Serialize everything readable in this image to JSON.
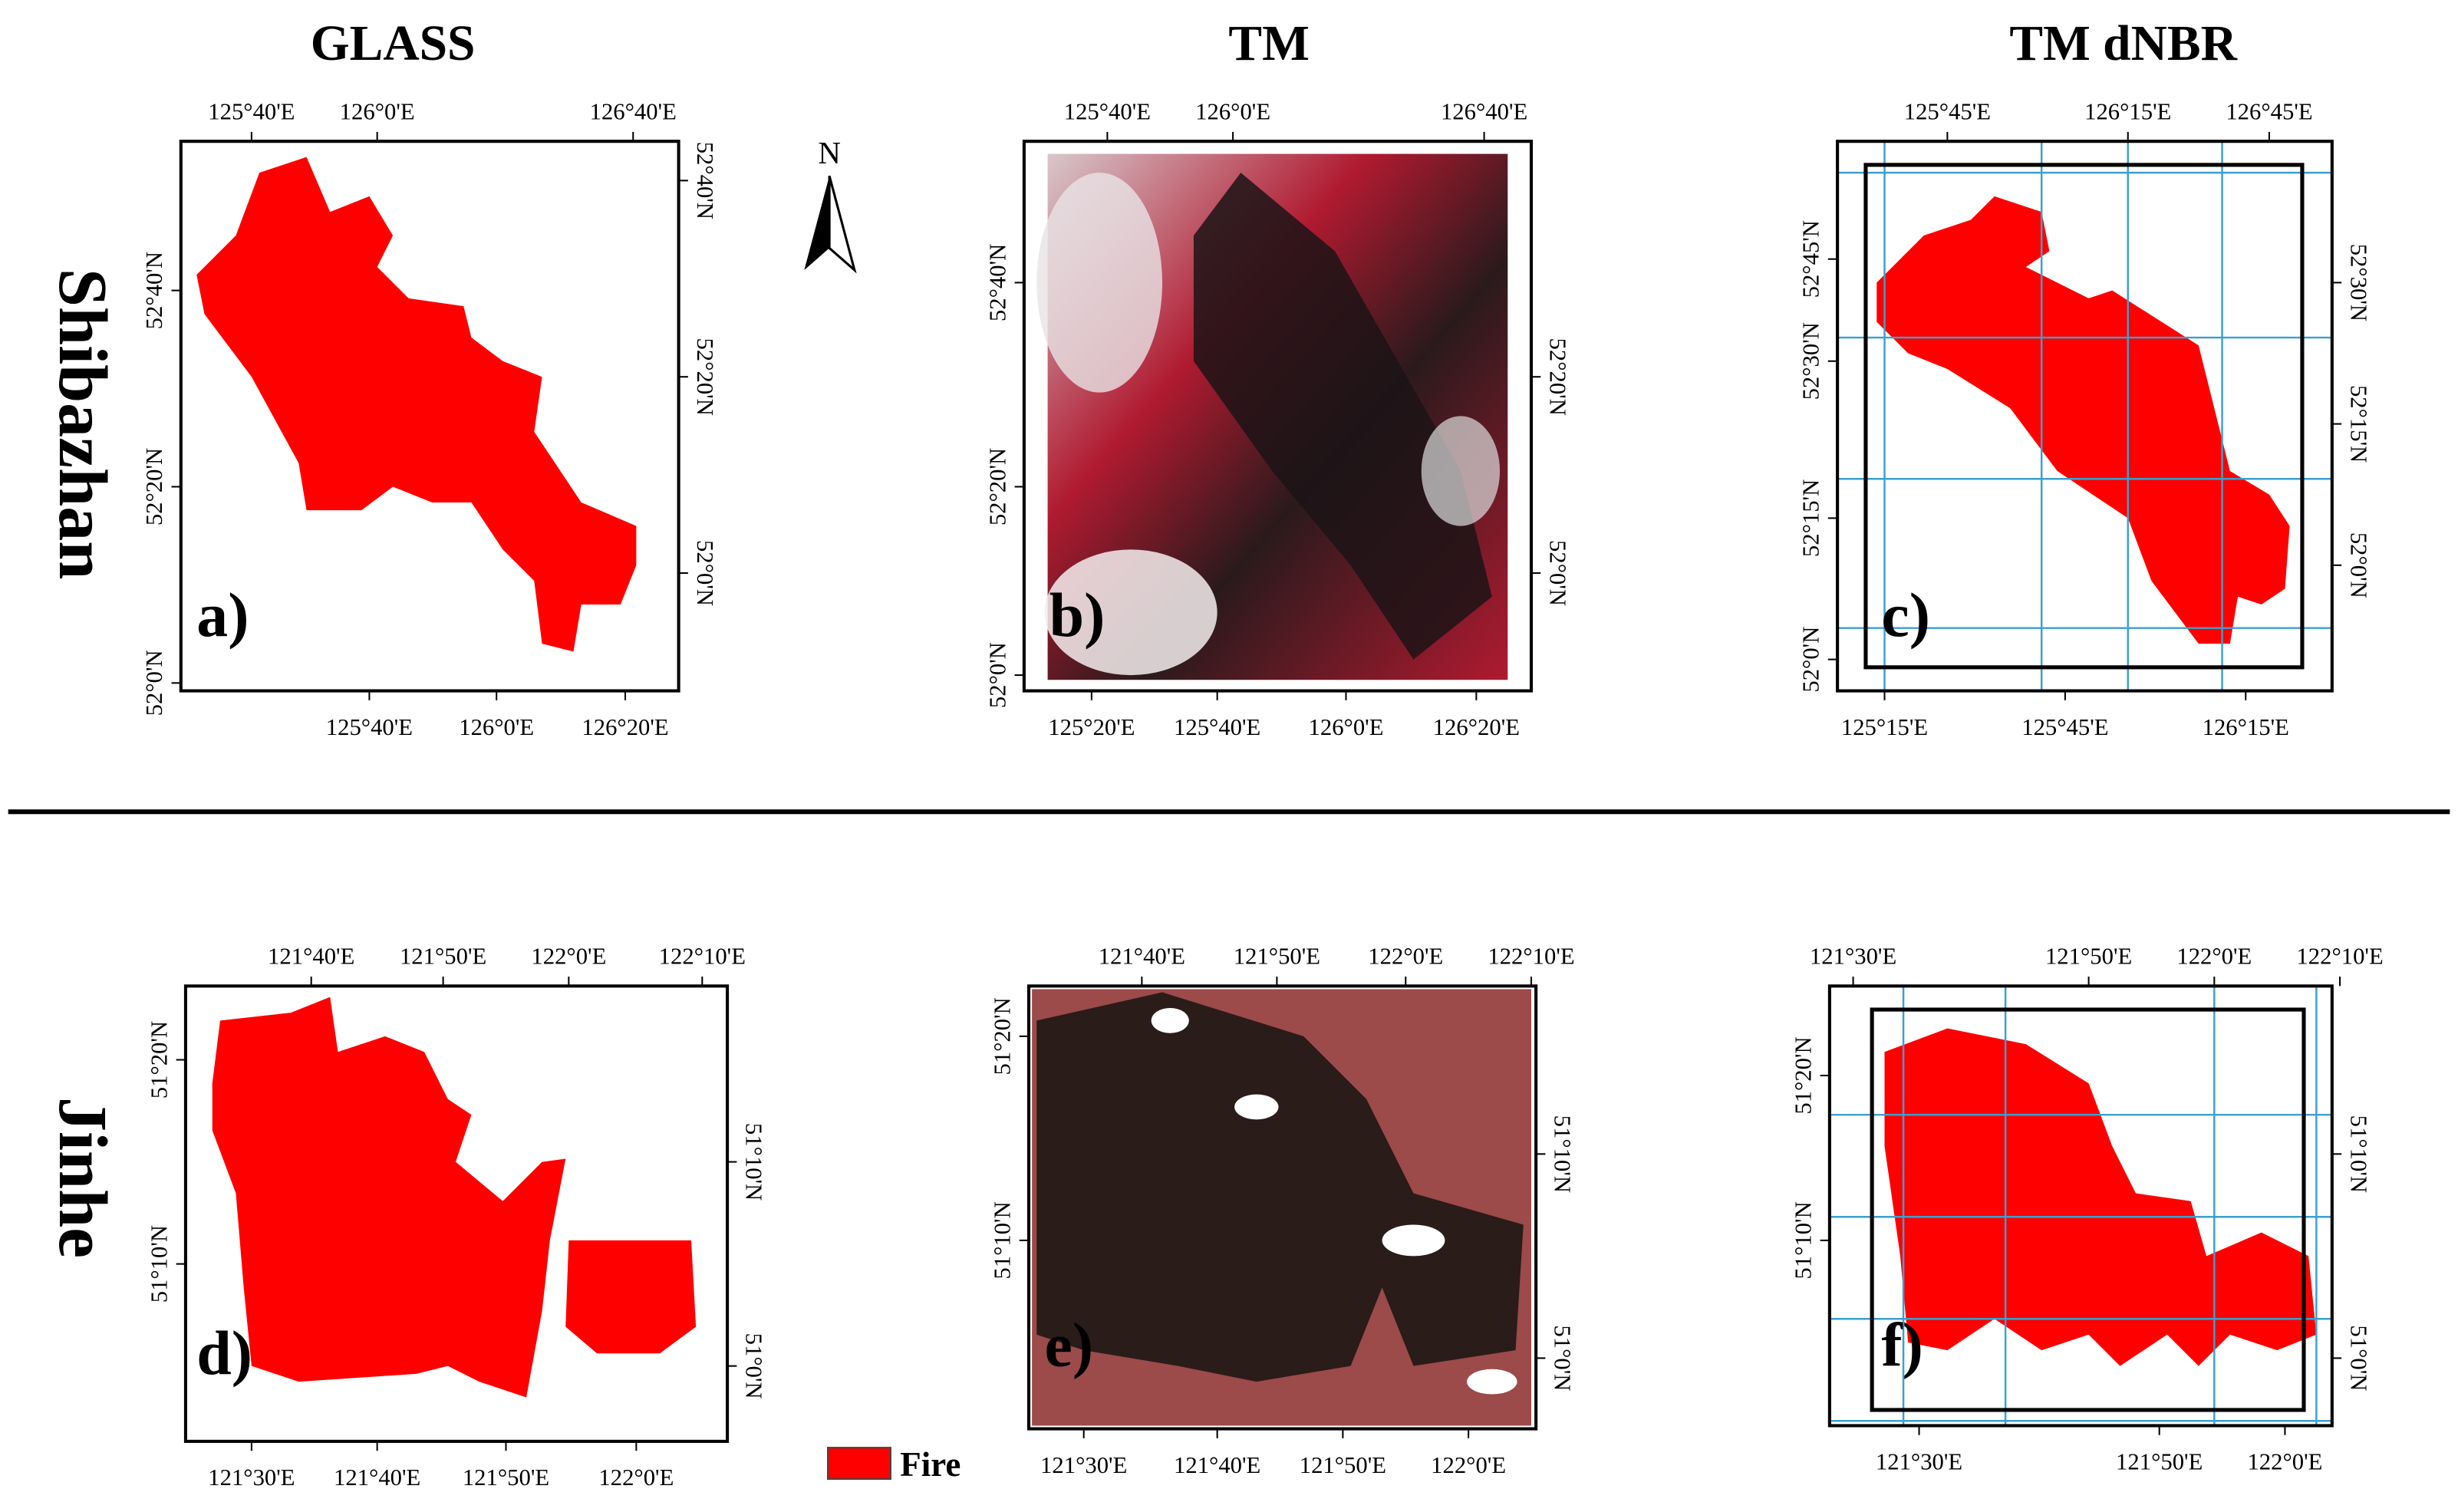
{
  "columns": [
    "GLASS",
    "TM",
    "TM dNBR"
  ],
  "rows": [
    "Shibazhan",
    "Jinhe"
  ],
  "north": "N",
  "legend": "Fire",
  "panels": [
    {
      "label": "a)",
      "top": [
        "125°40'E",
        "126°0'E",
        "126°40'E"
      ],
      "bottom": [
        "125°40'E",
        "126°0'E",
        "126°20'E"
      ],
      "left": [
        "52°40'N",
        "52°20'N",
        "52°0'N"
      ],
      "right": [
        "52°40'N",
        "52°20'N",
        "52°0'N"
      ]
    },
    {
      "label": "b)",
      "top": [
        "125°40'E",
        "126°0'E",
        "126°40'E"
      ],
      "bottom": [
        "125°20'E",
        "125°40'E",
        "126°0'E",
        "126°20'E"
      ],
      "left": [
        "52°40'N",
        "52°20'N",
        "52°0'N"
      ],
      "right": [
        "52°20'N",
        "52°0'N"
      ]
    },
    {
      "label": "c)",
      "top": [
        "125°45'E",
        "126°15'E",
        "126°45'E"
      ],
      "bottom": [
        "125°15'E",
        "125°45'E",
        "126°15'E"
      ],
      "left": [
        "52°45'N",
        "52°30'N",
        "52°15'N",
        "52°0'N"
      ],
      "right": [
        "52°30'N",
        "52°15'N",
        "52°0'N"
      ]
    },
    {
      "label": "d)",
      "top": [
        "121°40'E",
        "121°50'E",
        "122°0'E",
        "122°10'E"
      ],
      "bottom": [
        "121°30'E",
        "121°40'E",
        "121°50'E",
        "122°0'E"
      ],
      "left": [
        "51°20'N",
        "51°10'N"
      ],
      "right": [
        "51°10'N",
        "51°0'N"
      ]
    },
    {
      "label": "e)",
      "top": [
        "121°40'E",
        "121°50'E",
        "122°0'E",
        "122°10'E"
      ],
      "bottom": [
        "121°30'E",
        "121°40'E",
        "121°50'E",
        "122°0'E"
      ],
      "left": [
        "51°20'N",
        "51°10'N"
      ],
      "right": [
        "51°10'N",
        "51°0'N"
      ]
    },
    {
      "label": "f)",
      "top": [
        "121°30'E",
        "121°50'E",
        "122°0'E",
        "122°10'E"
      ],
      "bottom": [
        "121°30'E",
        "121°50'E",
        "122°0'E"
      ],
      "left": [
        "51°20'N",
        "51°10'N"
      ],
      "right": [
        "51°10'N",
        "51°0'N"
      ]
    }
  ]
}
